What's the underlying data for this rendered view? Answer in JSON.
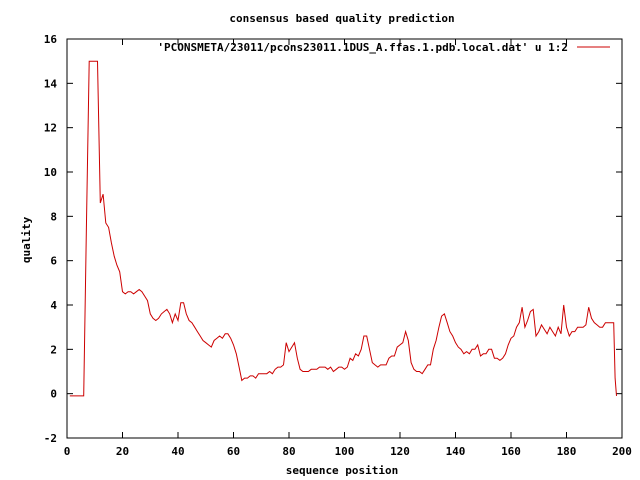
{
  "chart_data": {
    "type": "line",
    "title": "consensus based quality prediction",
    "xlabel": "sequence position",
    "ylabel": "quality",
    "xlim": [
      0,
      200
    ],
    "ylim": [
      -2,
      16
    ],
    "xticks": [
      0,
      20,
      40,
      60,
      80,
      100,
      120,
      140,
      160,
      180,
      200
    ],
    "yticks": [
      -2,
      0,
      2,
      4,
      6,
      8,
      10,
      12,
      14,
      16
    ],
    "grid": false,
    "legend_position": "top-right",
    "series": [
      {
        "name": "'PCONSMETA/23011/pcons23011.1DUS_A.ffas.1.pdb.local.dat' u 1:2",
        "color": "#cc0000",
        "points": [
          [
            1,
            -0.1
          ],
          [
            6,
            -0.1
          ],
          [
            7,
            7.5
          ],
          [
            8,
            15
          ],
          [
            9,
            15
          ],
          [
            10,
            15
          ],
          [
            11,
            15
          ],
          [
            12,
            8.6
          ],
          [
            13,
            9
          ],
          [
            14,
            7.7
          ],
          [
            15,
            7.5
          ],
          [
            16,
            6.8
          ],
          [
            17,
            6.2
          ],
          [
            18,
            5.8
          ],
          [
            19,
            5.5
          ],
          [
            20,
            4.6
          ],
          [
            21,
            4.5
          ],
          [
            22,
            4.6
          ],
          [
            23,
            4.6
          ],
          [
            24,
            4.5
          ],
          [
            25,
            4.6
          ],
          [
            26,
            4.7
          ],
          [
            27,
            4.6
          ],
          [
            28,
            4.4
          ],
          [
            29,
            4.2
          ],
          [
            30,
            3.6
          ],
          [
            31,
            3.4
          ],
          [
            32,
            3.3
          ],
          [
            33,
            3.4
          ],
          [
            34,
            3.6
          ],
          [
            35,
            3.7
          ],
          [
            36,
            3.8
          ],
          [
            37,
            3.6
          ],
          [
            38,
            3.2
          ],
          [
            39,
            3.6
          ],
          [
            40,
            3.3
          ],
          [
            41,
            4.1
          ],
          [
            42,
            4.1
          ],
          [
            43,
            3.6
          ],
          [
            44,
            3.3
          ],
          [
            45,
            3.2
          ],
          [
            46,
            3.0
          ],
          [
            47,
            2.8
          ],
          [
            48,
            2.6
          ],
          [
            49,
            2.4
          ],
          [
            50,
            2.3
          ],
          [
            51,
            2.2
          ],
          [
            52,
            2.1
          ],
          [
            53,
            2.4
          ],
          [
            54,
            2.5
          ],
          [
            55,
            2.6
          ],
          [
            56,
            2.5
          ],
          [
            57,
            2.7
          ],
          [
            58,
            2.7
          ],
          [
            59,
            2.5
          ],
          [
            60,
            2.2
          ],
          [
            61,
            1.8
          ],
          [
            62,
            1.2
          ],
          [
            63,
            0.6
          ],
          [
            64,
            0.7
          ],
          [
            65,
            0.7
          ],
          [
            66,
            0.8
          ],
          [
            67,
            0.8
          ],
          [
            68,
            0.7
          ],
          [
            69,
            0.9
          ],
          [
            70,
            0.9
          ],
          [
            71,
            0.9
          ],
          [
            72,
            0.9
          ],
          [
            73,
            1.0
          ],
          [
            74,
            0.9
          ],
          [
            75,
            1.1
          ],
          [
            76,
            1.2
          ],
          [
            77,
            1.2
          ],
          [
            78,
            1.3
          ],
          [
            79,
            2.3
          ],
          [
            80,
            1.9
          ],
          [
            81,
            2.1
          ],
          [
            82,
            2.3
          ],
          [
            83,
            1.6
          ],
          [
            84,
            1.1
          ],
          [
            85,
            1.0
          ],
          [
            86,
            1.0
          ],
          [
            87,
            1.0
          ],
          [
            88,
            1.1
          ],
          [
            89,
            1.1
          ],
          [
            90,
            1.1
          ],
          [
            91,
            1.2
          ],
          [
            92,
            1.2
          ],
          [
            93,
            1.2
          ],
          [
            94,
            1.1
          ],
          [
            95,
            1.2
          ],
          [
            96,
            1.0
          ],
          [
            97,
            1.1
          ],
          [
            98,
            1.2
          ],
          [
            99,
            1.2
          ],
          [
            100,
            1.1
          ],
          [
            101,
            1.2
          ],
          [
            102,
            1.6
          ],
          [
            103,
            1.5
          ],
          [
            104,
            1.8
          ],
          [
            105,
            1.7
          ],
          [
            106,
            2.0
          ],
          [
            107,
            2.6
          ],
          [
            108,
            2.6
          ],
          [
            109,
            2.0
          ],
          [
            110,
            1.4
          ],
          [
            111,
            1.3
          ],
          [
            112,
            1.2
          ],
          [
            113,
            1.3
          ],
          [
            114,
            1.3
          ],
          [
            115,
            1.3
          ],
          [
            116,
            1.6
          ],
          [
            117,
            1.7
          ],
          [
            118,
            1.7
          ],
          [
            119,
            2.1
          ],
          [
            120,
            2.2
          ],
          [
            121,
            2.3
          ],
          [
            122,
            2.8
          ],
          [
            123,
            2.4
          ],
          [
            124,
            1.4
          ],
          [
            125,
            1.1
          ],
          [
            126,
            1.0
          ],
          [
            127,
            1.0
          ],
          [
            128,
            0.9
          ],
          [
            129,
            1.1
          ],
          [
            130,
            1.3
          ],
          [
            131,
            1.3
          ],
          [
            132,
            2.0
          ],
          [
            133,
            2.4
          ],
          [
            134,
            3.0
          ],
          [
            135,
            3.5
          ],
          [
            136,
            3.6
          ],
          [
            137,
            3.2
          ],
          [
            138,
            2.8
          ],
          [
            139,
            2.6
          ],
          [
            140,
            2.3
          ],
          [
            141,
            2.1
          ],
          [
            142,
            2.0
          ],
          [
            143,
            1.8
          ],
          [
            144,
            1.9
          ],
          [
            145,
            1.8
          ],
          [
            146,
            2.0
          ],
          [
            147,
            2.0
          ],
          [
            148,
            2.2
          ],
          [
            149,
            1.7
          ],
          [
            150,
            1.8
          ],
          [
            151,
            1.8
          ],
          [
            152,
            2.0
          ],
          [
            153,
            2.0
          ],
          [
            154,
            1.6
          ],
          [
            155,
            1.6
          ],
          [
            156,
            1.5
          ],
          [
            157,
            1.6
          ],
          [
            158,
            1.8
          ],
          [
            159,
            2.2
          ],
          [
            160,
            2.5
          ],
          [
            161,
            2.6
          ],
          [
            162,
            3.0
          ],
          [
            163,
            3.2
          ],
          [
            164,
            3.9
          ],
          [
            165,
            3.0
          ],
          [
            166,
            3.3
          ],
          [
            167,
            3.7
          ],
          [
            168,
            3.8
          ],
          [
            169,
            2.6
          ],
          [
            170,
            2.8
          ],
          [
            171,
            3.1
          ],
          [
            172,
            2.9
          ],
          [
            173,
            2.7
          ],
          [
            174,
            3.0
          ],
          [
            175,
            2.8
          ],
          [
            176,
            2.6
          ],
          [
            177,
            3.0
          ],
          [
            178,
            2.7
          ],
          [
            179,
            4.0
          ],
          [
            180,
            3.0
          ],
          [
            181,
            2.6
          ],
          [
            182,
            2.8
          ],
          [
            183,
            2.8
          ],
          [
            184,
            3.0
          ],
          [
            185,
            3.0
          ],
          [
            186,
            3.0
          ],
          [
            187,
            3.1
          ],
          [
            188,
            3.9
          ],
          [
            189,
            3.4
          ],
          [
            190,
            3.2
          ],
          [
            191,
            3.1
          ],
          [
            192,
            3.0
          ],
          [
            193,
            3.0
          ],
          [
            194,
            3.2
          ],
          [
            195,
            3.2
          ],
          [
            196,
            3.2
          ],
          [
            197,
            3.2
          ],
          [
            197.5,
            0.7
          ],
          [
            198,
            -0.1
          ]
        ]
      }
    ]
  }
}
